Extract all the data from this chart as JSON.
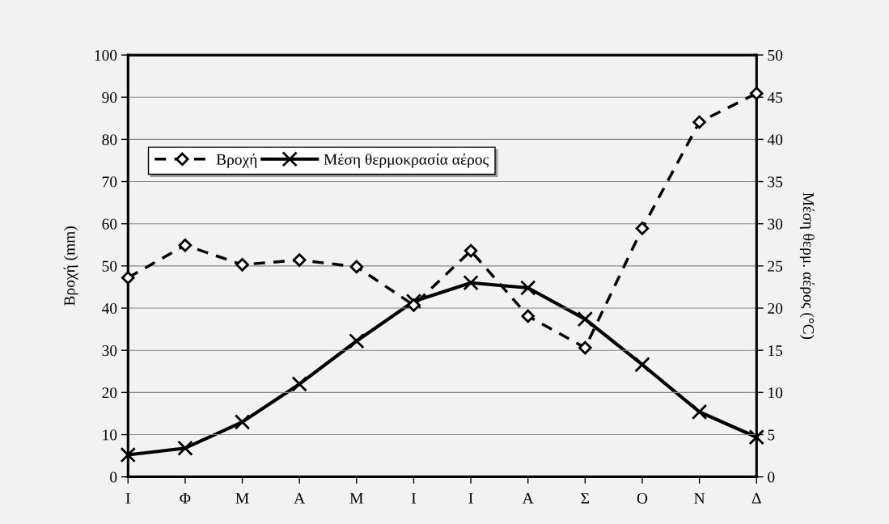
{
  "chart_data": {
    "type": "line",
    "categories": [
      "Ι",
      "Φ",
      "Μ",
      "Α",
      "Μ",
      "Ι",
      "Ι",
      "Α",
      "Σ",
      "Ο",
      "Ν",
      "Δ"
    ],
    "series": [
      {
        "name": "Βροχή",
        "color": "#000000",
        "marker": "diamond",
        "line_style": "dashed",
        "values": [
          47.2,
          54.9,
          50.3,
          51.4,
          49.8,
          40.7,
          53.6,
          38.1,
          30.6,
          58.9,
          84.1,
          90.9
        ]
      },
      {
        "name": "Μέση θερμοκρασία αέρος",
        "color": "#000000",
        "marker": "cross",
        "line_style": "solid",
        "axis": "y2",
        "values": [
          2.6,
          3.4,
          6.5,
          11.0,
          16.1,
          20.8,
          23.0,
          22.4,
          18.7,
          13.3,
          7.7,
          4.7
        ]
      }
    ],
    "ylabel": "Βροχή (mm)",
    "y2label": "Μέση θερμ. αέρος (°C)",
    "ylim": [
      0,
      100
    ],
    "yticks": [
      0,
      10,
      20,
      30,
      40,
      50,
      60,
      70,
      80,
      90,
      100
    ],
    "y2lim": [
      0,
      50
    ],
    "y2ticks": [
      0,
      5,
      10,
      15,
      20,
      25,
      30,
      35,
      40,
      45,
      50
    ],
    "grid": "y",
    "legend": "top left"
  }
}
